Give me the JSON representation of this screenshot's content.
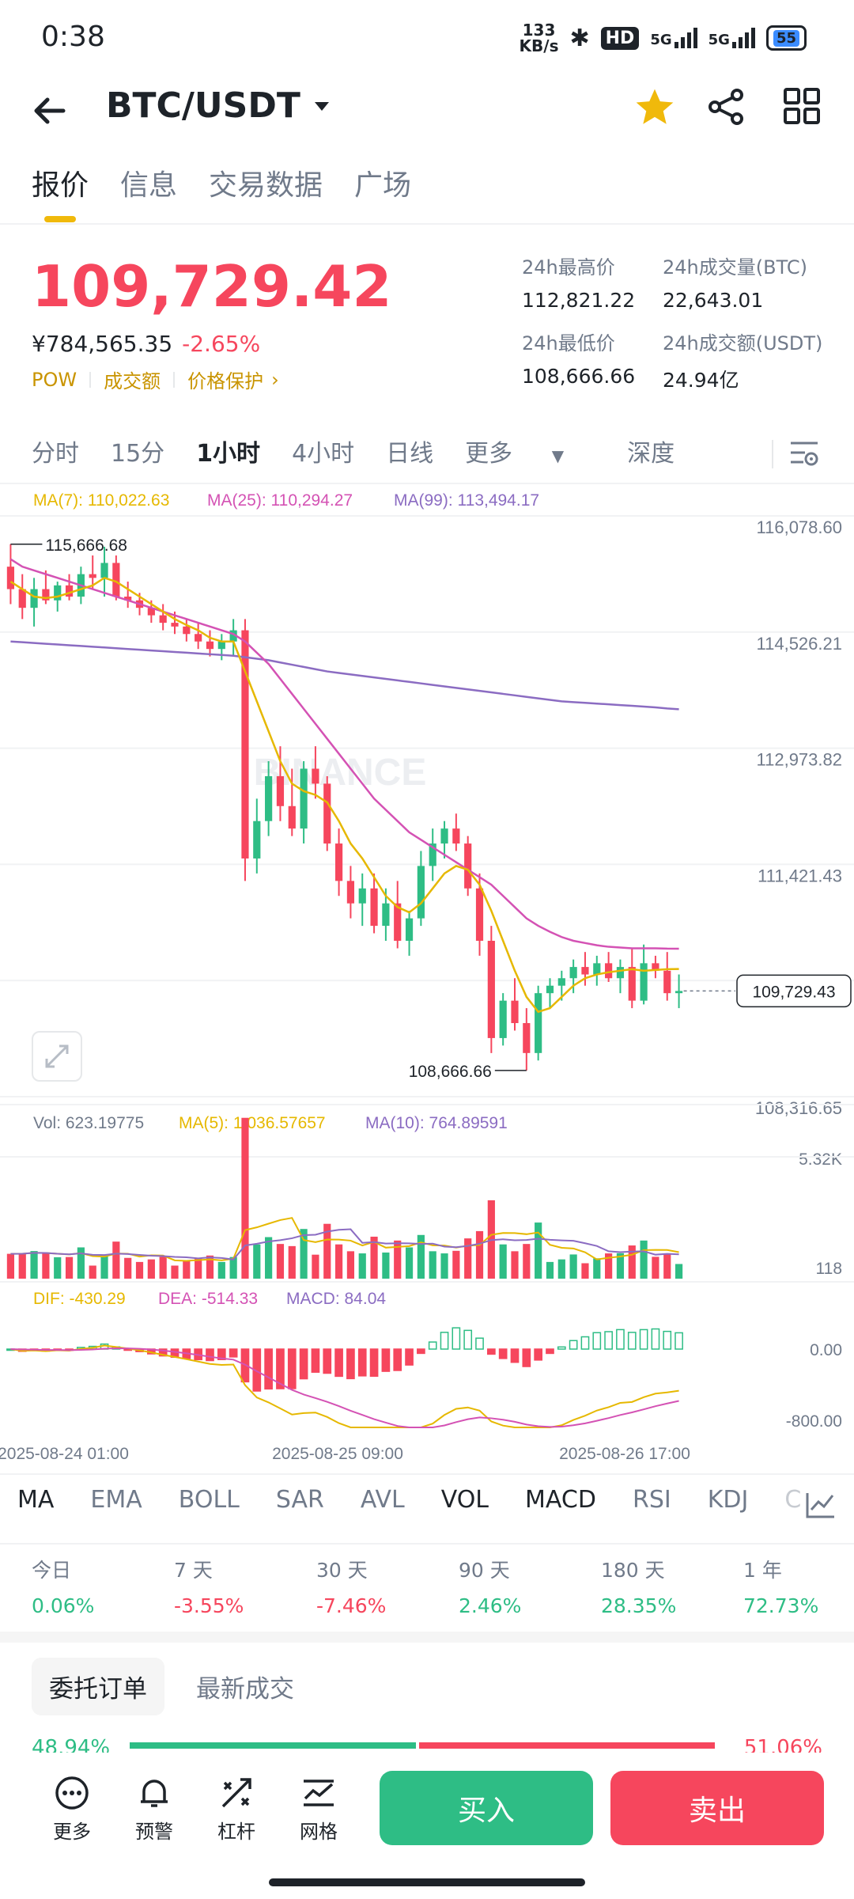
{
  "status_bar": {
    "time": "0:38",
    "net_speed_value": "133",
    "net_speed_unit": "KB/s",
    "hd": "HD",
    "sig1": "5G",
    "sig2": "5G",
    "battery": "55"
  },
  "header": {
    "pair": "BTC/USDT"
  },
  "tabs": [
    "报价",
    "信息",
    "交易数据",
    "广场"
  ],
  "ticker": {
    "price": "109,729.42",
    "cny": "¥784,565.35",
    "change": "-2.65%",
    "tags": [
      "POW",
      "成交额",
      "价格保护"
    ],
    "stats": [
      {
        "label": "24h最高价",
        "value": "112,821.22"
      },
      {
        "label": "24h成交量(BTC)",
        "value": "22,643.01"
      },
      {
        "label": "24h最低价",
        "value": "108,666.66"
      },
      {
        "label": "24h成交额(USDT)",
        "value": "24.94亿"
      }
    ]
  },
  "intervals": [
    "分时",
    "15分",
    "1小时",
    "4小时",
    "日线",
    "更多",
    "深度"
  ],
  "chart_data": {
    "type": "candlestick",
    "ma_legend": {
      "ma7": "MA(7): 110,022.63",
      "ma25": "MA(25): 110,294.27",
      "ma99": "MA(99): 113,494.17"
    },
    "y_ticks": [
      "116,078.60",
      "114,526.21",
      "112,973.82",
      "111,421.43",
      "109,869.05",
      "108,316.65"
    ],
    "y_range": [
      108316.65,
      116078.6
    ],
    "high_label": "115,666.68",
    "low_label": "108,666.66",
    "current_price_label": "109,729.43",
    "candles": [
      [
        115400,
        115700,
        114900,
        115100
      ],
      [
        115100,
        115300,
        114700,
        114850
      ],
      [
        114850,
        115250,
        114600,
        115100
      ],
      [
        115100,
        115350,
        114900,
        114950
      ],
      [
        114950,
        115200,
        114800,
        115150
      ],
      [
        115150,
        115300,
        114950,
        115000
      ],
      [
        115000,
        115400,
        114900,
        115300
      ],
      [
        115300,
        115550,
        115100,
        115250
      ],
      [
        115250,
        115666.68,
        115000,
        115450
      ],
      [
        115450,
        115550,
        114950,
        115000
      ],
      [
        115000,
        115200,
        114850,
        114950
      ],
      [
        114950,
        115050,
        114750,
        114850
      ],
      [
        114850,
        114950,
        114650,
        114750
      ],
      [
        114750,
        114900,
        114550,
        114650
      ],
      [
        114650,
        114800,
        114500,
        114600
      ],
      [
        114600,
        114700,
        114400,
        114500
      ],
      [
        114500,
        114650,
        114300,
        114400
      ],
      [
        114400,
        114550,
        114200,
        114300
      ],
      [
        114300,
        114500,
        114150,
        114400
      ],
      [
        114400,
        114700,
        114200,
        114550
      ],
      [
        114550,
        114700,
        111200,
        111500
      ],
      [
        111500,
        112300,
        111300,
        112000
      ],
      [
        112000,
        112800,
        111800,
        112600
      ],
      [
        112600,
        113000,
        112000,
        112200
      ],
      [
        112200,
        112700,
        111800,
        111900
      ],
      [
        111900,
        112800,
        111700,
        112700
      ],
      [
        112700,
        113000,
        112300,
        112500
      ],
      [
        112500,
        112600,
        111600,
        111700
      ],
      [
        111700,
        111900,
        111000,
        111200
      ],
      [
        111200,
        111400,
        110700,
        110900
      ],
      [
        110900,
        111300,
        110600,
        111100
      ],
      [
        111100,
        111300,
        110500,
        110600
      ],
      [
        110600,
        111100,
        110400,
        110900
      ],
      [
        110900,
        111200,
        110300,
        110400
      ],
      [
        110400,
        110800,
        110200,
        110700
      ],
      [
        110700,
        111600,
        110600,
        111400
      ],
      [
        111400,
        111900,
        111200,
        111700
      ],
      [
        111700,
        112000,
        111500,
        111900
      ],
      [
        111900,
        112100,
        111600,
        111700
      ],
      [
        111700,
        111800,
        111000,
        111100
      ],
      [
        111100,
        111300,
        110200,
        110400
      ],
      [
        110400,
        110600,
        108900,
        109100
      ],
      [
        109100,
        109700,
        109000,
        109600
      ],
      [
        109600,
        109900,
        109200,
        109300
      ],
      [
        109300,
        109500,
        108666.66,
        108900
      ],
      [
        108900,
        109800,
        108800,
        109700
      ],
      [
        109700,
        109900,
        109500,
        109800
      ],
      [
        109800,
        110000,
        109600,
        109900
      ],
      [
        109900,
        110150,
        109700,
        110050
      ],
      [
        110050,
        110250,
        109800,
        109950
      ],
      [
        109950,
        110200,
        109800,
        110100
      ],
      [
        110100,
        110250,
        109850,
        109900
      ],
      [
        109900,
        110150,
        109700,
        110050
      ],
      [
        110050,
        110300,
        109500,
        109600
      ],
      [
        109600,
        110350,
        109550,
        110100
      ],
      [
        110100,
        110200,
        109900,
        110000
      ],
      [
        110000,
        110250,
        109600,
        109700
      ],
      [
        109700,
        109950,
        109500,
        109729.43
      ]
    ],
    "ma7_series": [
      115200,
      115100,
      115000,
      114980,
      115000,
      115050,
      115100,
      115150,
      115250,
      115200,
      115100,
      115000,
      114900,
      114800,
      114700,
      114620,
      114550,
      114450,
      114400,
      114400,
      114000,
      113600,
      113200,
      112800,
      112500,
      112400,
      112350,
      112250,
      112000,
      111700,
      111500,
      111250,
      111000,
      110850,
      110780,
      110900,
      111100,
      111300,
      111400,
      111350,
      111150,
      110800,
      110400,
      110000,
      109650,
      109450,
      109500,
      109650,
      109800,
      109900,
      109950,
      109980,
      110000,
      110020,
      110000,
      110010,
      110020,
      110022.63
    ],
    "ma25_series": [
      115500,
      115400,
      115350,
      115300,
      115250,
      115200,
      115150,
      115100,
      115050,
      115000,
      114950,
      114900,
      114850,
      114800,
      114750,
      114700,
      114650,
      114600,
      114550,
      114500,
      114400,
      114250,
      114100,
      113900,
      113700,
      113500,
      113300,
      113100,
      112900,
      112700,
      112500,
      112300,
      112150,
      112000,
      111850,
      111750,
      111650,
      111550,
      111450,
      111350,
      111250,
      111150,
      111000,
      110850,
      110700,
      110600,
      110520,
      110450,
      110400,
      110370,
      110340,
      110320,
      110310,
      110300,
      110300,
      110300,
      110295,
      110294.27
    ],
    "ma99_series": [
      114400,
      114390,
      114380,
      114370,
      114360,
      114350,
      114340,
      114330,
      114320,
      114310,
      114300,
      114290,
      114280,
      114270,
      114260,
      114250,
      114240,
      114230,
      114220,
      114210,
      114190,
      114170,
      114150,
      114120,
      114090,
      114060,
      114030,
      114000,
      113980,
      113960,
      113940,
      113920,
      113900,
      113880,
      113860,
      113840,
      113820,
      113800,
      113780,
      113760,
      113740,
      113720,
      113700,
      113680,
      113660,
      113640,
      113620,
      113600,
      113590,
      113580,
      113570,
      113560,
      113550,
      113540,
      113530,
      113520,
      113505,
      113494.17
    ],
    "volume": {
      "legend_vol": "Vol: 623.19775",
      "legend_ma5": "MA(5): 1,036.57657",
      "legend_ma10": "MA(10): 764.89591",
      "y_ticks": [
        "5.32K",
        "118"
      ],
      "y_max": 5320
    },
    "macd": {
      "legend_dif": "DIF: -430.29",
      "legend_dea": "DEA: -514.33",
      "legend_macd": "MACD: 84.04",
      "y_ticks": [
        "0.00",
        "-800.00"
      ]
    },
    "x_ticks": [
      "2025-08-24 01:00",
      "2025-08-25 09:00",
      "2025-08-26 17:00"
    ],
    "watermark": "BINANCE"
  },
  "indicators": [
    "MA",
    "EMA",
    "BOLL",
    "SAR",
    "AVL",
    "VOL",
    "MACD",
    "RSI",
    "KDJ",
    "C"
  ],
  "performance": [
    {
      "label": "今日",
      "value": "0.06%",
      "dir": "up"
    },
    {
      "label": "7 天",
      "value": "-3.55%",
      "dir": "down"
    },
    {
      "label": "30 天",
      "value": "-7.46%",
      "dir": "down"
    },
    {
      "label": "90 天",
      "value": "2.46%",
      "dir": "up"
    },
    {
      "label": "180 天",
      "value": "28.35%",
      "dir": "up"
    },
    {
      "label": "1 年",
      "value": "72.73%",
      "dir": "up"
    }
  ],
  "orderbook": {
    "tab_active": "委托订单",
    "tab_other": "最新成交",
    "bid_pct": "48.94%",
    "ask_pct": "51.06%",
    "bid_ratio": 0.4894
  },
  "bottom_nav": [
    "更多",
    "预警",
    "杠杆",
    "网格"
  ],
  "actions": {
    "buy": "买入",
    "sell": "卖出"
  },
  "colors": {
    "up": "#2ebd85",
    "down": "#f6465d",
    "accent": "#f0b90b",
    "ma7": "#e6b800",
    "ma25": "#d452b4",
    "ma99": "#8b6cc2"
  }
}
